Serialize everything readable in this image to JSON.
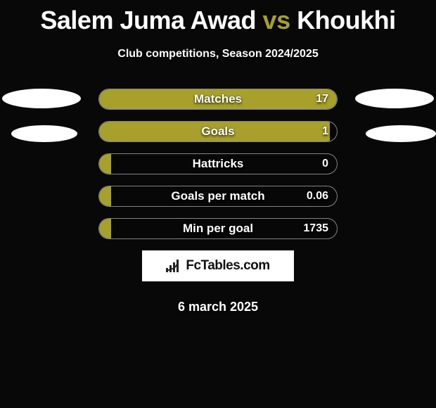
{
  "title": {
    "player1": "Salem Juma Awad",
    "vs": "vs",
    "player2": "Khoukhi",
    "player1_color": "#ffffff",
    "vs_color": "#a7a02b",
    "player2_color": "#ffffff"
  },
  "subtitle": "Club competitions, Season 2024/2025",
  "chart": {
    "bar_color": "#a7a02b",
    "border_color": "rgba(255,255,255,0.5)",
    "bars": [
      {
        "label": "Matches",
        "value": "17",
        "fill_pct": 100
      },
      {
        "label": "Goals",
        "value": "1",
        "fill_pct": 97
      },
      {
        "label": "Hattricks",
        "value": "0",
        "fill_pct": 5
      },
      {
        "label": "Goals per match",
        "value": "0.06",
        "fill_pct": 5
      },
      {
        "label": "Min per goal",
        "value": "1735",
        "fill_pct": 5
      }
    ]
  },
  "side_ovals": {
    "color": "#ffffff",
    "left_count": 2,
    "right_count": 2
  },
  "logo": {
    "text": "FcTables.com"
  },
  "date": "6 march 2025"
}
